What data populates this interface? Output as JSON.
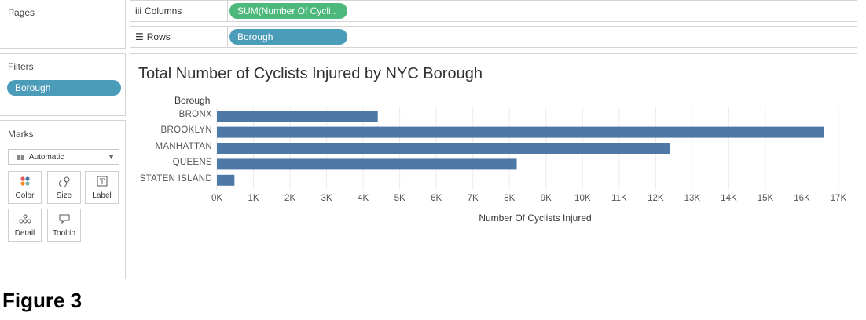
{
  "left_panel": {
    "pages_title": "Pages",
    "filters_title": "Filters",
    "filter_pill": "Borough",
    "marks_title": "Marks",
    "mark_type": "Automatic",
    "mark_buttons": [
      {
        "label": "Color",
        "icon": "color-dots-icon"
      },
      {
        "label": "Size",
        "icon": "size-icon"
      },
      {
        "label": "Label",
        "icon": "label-icon"
      },
      {
        "label": "Detail",
        "icon": "detail-icon"
      },
      {
        "label": "Tooltip",
        "icon": "tooltip-icon"
      }
    ]
  },
  "shelves": {
    "columns_label": "Columns",
    "columns_pill": "SUM(Number Of Cycli..",
    "rows_label": "Rows",
    "rows_pill": "Borough"
  },
  "colors": {
    "bar": "#4e79a7",
    "pill_blue": "#4a9cb8",
    "pill_green": "#4cb87c"
  },
  "chart_data": {
    "type": "bar",
    "orientation": "horizontal",
    "title": "Total Number of Cyclists Injured by NYC Borough",
    "row_header": "Borough",
    "categories": [
      "BRONX",
      "BROOKLYN",
      "MANHATTAN",
      "QUEENS",
      "STATEN ISLAND"
    ],
    "values": [
      4400,
      16600,
      12400,
      8200,
      480
    ],
    "xlabel": "Number Of Cyclists Injured",
    "xlim": [
      0,
      17000
    ],
    "x_ticks": [
      "0K",
      "1K",
      "2K",
      "3K",
      "4K",
      "5K",
      "6K",
      "7K",
      "8K",
      "9K",
      "10K",
      "11K",
      "12K",
      "13K",
      "14K",
      "15K",
      "16K",
      "17K"
    ],
    "grid": true
  },
  "caption": "Figure 3"
}
